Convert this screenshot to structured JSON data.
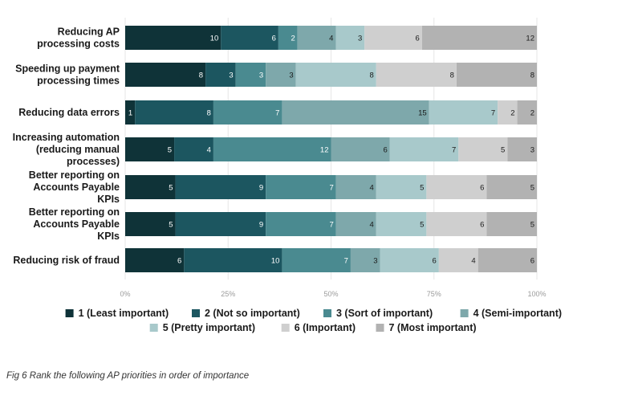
{
  "chart_data": {
    "type": "bar",
    "orientation": "horizontal",
    "stacked": true,
    "normalized": true,
    "title": "",
    "xlabel": "",
    "ylabel": "",
    "xlim": [
      0,
      100
    ],
    "x_ticks": [
      "0%",
      "25%",
      "50%",
      "75%",
      "100%"
    ],
    "legend_position": "bottom",
    "categories": [
      [
        "Reducing AP",
        "processing costs"
      ],
      [
        "Speeding up payment",
        "processing times"
      ],
      [
        "Reducing data errors"
      ],
      [
        "Increasing automation",
        "(reducing manual",
        "processes)"
      ],
      [
        "Better reporting on",
        "Accounts Payable",
        "KPIs"
      ],
      [
        "Better reporting on",
        "Accounts Payable",
        "KPIs"
      ],
      [
        "Reducing risk of fraud"
      ]
    ],
    "series": [
      {
        "name": "1 (Least important)",
        "color": "#0f3338",
        "values": [
          10,
          8,
          1,
          5,
          5,
          5,
          6
        ]
      },
      {
        "name": "2 (Not so important)",
        "color": "#1c5660",
        "values": [
          6,
          3,
          8,
          4,
          9,
          9,
          10
        ]
      },
      {
        "name": "3 (Sort of important)",
        "color": "#4a8a90",
        "values": [
          2,
          3,
          7,
          12,
          7,
          7,
          7
        ]
      },
      {
        "name": "4 (Semi-important)",
        "color": "#7ea8ab",
        "values": [
          4,
          3,
          15,
          6,
          4,
          4,
          3
        ]
      },
      {
        "name": "5 (Pretty important)",
        "color": "#a8c9cb",
        "values": [
          3,
          8,
          7,
          7,
          5,
          5,
          6
        ]
      },
      {
        "name": "6 (Important)",
        "color": "#cfcfcf",
        "values": [
          6,
          8,
          2,
          5,
          6,
          6,
          4
        ]
      },
      {
        "name": "7 (Most important)",
        "color": "#b2b2b2",
        "values": [
          12,
          8,
          2,
          3,
          5,
          5,
          6
        ]
      }
    ]
  },
  "caption": "Fig 6 Rank the following AP priorities in order of importance"
}
